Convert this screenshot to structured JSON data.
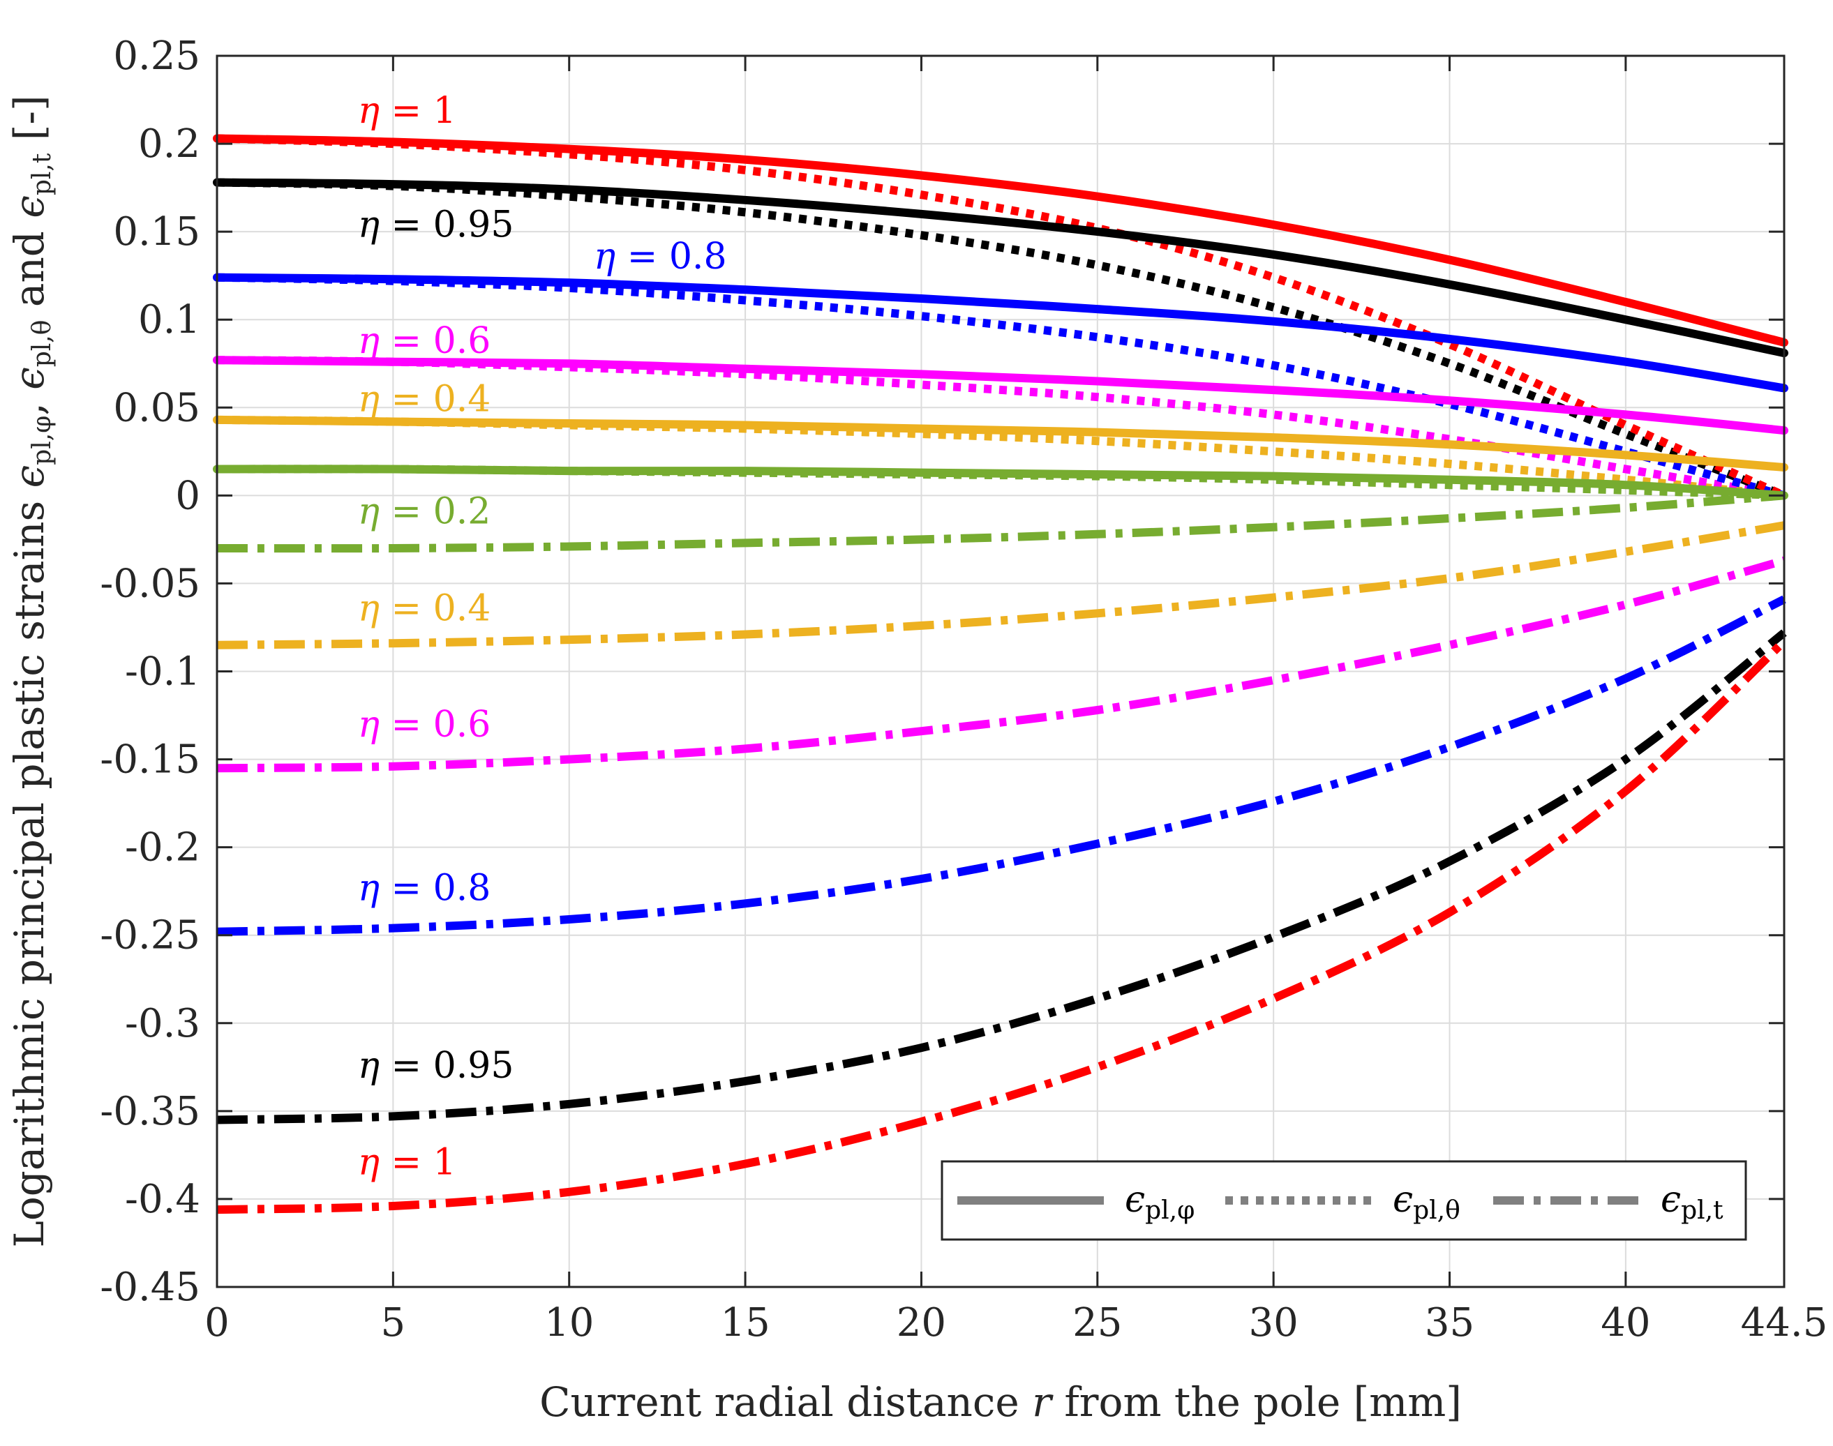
{
  "chart_data": {
    "type": "line",
    "xlabel_parts": [
      "Current radial distance ",
      "r",
      " from the pole [mm]"
    ],
    "ylabel_parts": {
      "main": "Logarithmic principal plastic strains ",
      "sym1": "ϵ",
      "sub1": "pl,φ",
      "sep": ", ",
      "sym2": "ϵ",
      "sub2": "pl,θ",
      "and": " and ",
      "sym3": "ϵ",
      "sub3": "pl,t",
      "unit": "[-]"
    },
    "xlim": [
      0,
      44.5
    ],
    "ylim": [
      -0.45,
      0.25
    ],
    "xticks": [
      0,
      5,
      10,
      15,
      20,
      25,
      30,
      35,
      40,
      44.5
    ],
    "xtick_labels": [
      "0",
      "5",
      "10",
      "15",
      "20",
      "25",
      "30",
      "35",
      "40",
      "44.5"
    ],
    "yticks": [
      0.25,
      0.2,
      0.15,
      0.1,
      0.05,
      0,
      -0.05,
      -0.1,
      -0.15,
      -0.2,
      -0.25,
      -0.3,
      -0.35,
      -0.4,
      -0.45
    ],
    "ytick_labels": [
      "0.25",
      "0.2",
      "0.15",
      "0.1",
      "0.05",
      "0",
      "-0.05",
      "-0.1",
      "-0.15",
      "-0.2",
      "-0.25",
      "-0.3",
      "-0.35",
      "-0.4",
      "-0.45"
    ],
    "grid": true,
    "legend_position": "bottom-right",
    "legend": [
      {
        "style": "solid",
        "sym": "ϵ",
        "sub": "pl,φ"
      },
      {
        "style": "dotted",
        "sym": "ϵ",
        "sub": "pl,θ"
      },
      {
        "style": "dashdot",
        "sym": "ϵ",
        "sub": "pl,t"
      }
    ],
    "x": [
      0,
      5,
      10,
      15,
      20,
      25,
      30,
      35,
      40,
      44.5
    ],
    "series": [
      {
        "name": "η = 1",
        "color": "#ff0000",
        "phi": [
          0.203,
          0.201,
          0.197,
          0.191,
          0.182,
          0.17,
          0.154,
          0.134,
          0.11,
          0.087
        ],
        "theta": [
          0.203,
          0.2,
          0.194,
          0.185,
          0.171,
          0.152,
          0.124,
          0.086,
          0.04,
          0.0
        ],
        "t": [
          -0.406,
          -0.404,
          -0.396,
          -0.38,
          -0.356,
          -0.325,
          -0.286,
          -0.237,
          -0.168,
          -0.083
        ]
      },
      {
        "name": "η = 0.95",
        "color": "#000000",
        "phi": [
          0.178,
          0.177,
          0.174,
          0.168,
          0.16,
          0.15,
          0.137,
          0.12,
          0.1,
          0.081
        ],
        "theta": [
          0.178,
          0.176,
          0.17,
          0.161,
          0.148,
          0.131,
          0.107,
          0.075,
          0.035,
          0.0
        ],
        "t": [
          -0.355,
          -0.353,
          -0.346,
          -0.333,
          -0.314,
          -0.286,
          -0.251,
          -0.208,
          -0.15,
          -0.078
        ]
      },
      {
        "name": "η = 0.8",
        "color": "#0000ff",
        "phi": [
          0.124,
          0.123,
          0.121,
          0.117,
          0.112,
          0.106,
          0.099,
          0.089,
          0.076,
          0.061
        ],
        "theta": [
          0.124,
          0.122,
          0.118,
          0.111,
          0.102,
          0.09,
          0.074,
          0.052,
          0.025,
          0.0
        ],
        "t": [
          -0.248,
          -0.246,
          -0.241,
          -0.232,
          -0.218,
          -0.198,
          -0.174,
          -0.143,
          -0.104,
          -0.059
        ]
      },
      {
        "name": "η = 0.6",
        "color": "#ff00ff",
        "phi": [
          0.077,
          0.076,
          0.075,
          0.072,
          0.069,
          0.065,
          0.06,
          0.054,
          0.046,
          0.037
        ],
        "theta": [
          0.077,
          0.076,
          0.073,
          0.069,
          0.063,
          0.056,
          0.046,
          0.032,
          0.015,
          0.0
        ],
        "t": [
          -0.155,
          -0.154,
          -0.15,
          -0.144,
          -0.134,
          -0.122,
          -0.105,
          -0.085,
          -0.062,
          -0.037
        ]
      },
      {
        "name": "η = 0.4",
        "color": "#edb120",
        "phi": [
          0.043,
          0.042,
          0.041,
          0.04,
          0.038,
          0.036,
          0.033,
          0.029,
          0.023,
          0.016
        ],
        "theta": [
          0.043,
          0.042,
          0.04,
          0.038,
          0.035,
          0.031,
          0.025,
          0.018,
          0.009,
          0.0
        ],
        "t": [
          -0.085,
          -0.084,
          -0.082,
          -0.079,
          -0.074,
          -0.067,
          -0.058,
          -0.047,
          -0.032,
          -0.017
        ]
      },
      {
        "name": "η = 0.2",
        "color": "#77ac30",
        "phi": [
          0.015,
          0.015,
          0.014,
          0.014,
          0.013,
          0.012,
          0.011,
          0.009,
          0.006,
          0.0
        ],
        "theta": [
          0.015,
          0.015,
          0.014,
          0.013,
          0.012,
          0.011,
          0.009,
          0.006,
          0.003,
          0.0
        ],
        "t": [
          -0.03,
          -0.03,
          -0.029,
          -0.027,
          -0.025,
          -0.022,
          -0.018,
          -0.013,
          -0.007,
          0.0
        ]
      }
    ],
    "labels": [
      {
        "text_sym": "η",
        "text_rest": " = 1",
        "color": "#ff0000",
        "x": 4.0,
        "y": 0.212
      },
      {
        "text_sym": "η",
        "text_rest": " = 0.95",
        "color": "#000000",
        "x": 4.0,
        "y": 0.147
      },
      {
        "text_sym": "η",
        "text_rest": " = 0.8",
        "color": "#0000ff",
        "x": 10.7,
        "y": 0.129
      },
      {
        "text_sym": "η",
        "text_rest": " = 0.6",
        "color": "#ff00ff",
        "x": 4.0,
        "y": 0.081
      },
      {
        "text_sym": "η",
        "text_rest": " = 0.4",
        "color": "#edb120",
        "x": 4.0,
        "y": 0.048
      },
      {
        "text_sym": "η",
        "text_rest": " = 0.2",
        "color": "#77ac30",
        "x": 4.0,
        "y": -0.016
      },
      {
        "text_sym": "η",
        "text_rest": " = 0.4",
        "color": "#edb120",
        "x": 4.0,
        "y": -0.071
      },
      {
        "text_sym": "η",
        "text_rest": " = 0.6",
        "color": "#ff00ff",
        "x": 4.0,
        "y": -0.137
      },
      {
        "text_sym": "η",
        "text_rest": " = 0.8",
        "color": "#0000ff",
        "x": 4.0,
        "y": -0.23
      },
      {
        "text_sym": "η",
        "text_rest": " = 0.95",
        "color": "#000000",
        "x": 4.0,
        "y": -0.331
      },
      {
        "text_sym": "η",
        "text_rest": " = 1",
        "color": "#ff0000",
        "x": 4.0,
        "y": -0.386
      }
    ]
  }
}
